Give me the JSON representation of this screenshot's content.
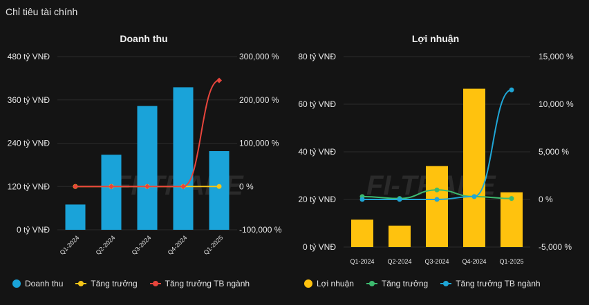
{
  "page": {
    "title": "Chỉ tiêu tài chính"
  },
  "chart_data": [
    {
      "type": "bar",
      "title": "Doanh thu",
      "categories": [
        "Q1-2024",
        "Q2-2024",
        "Q3-2024",
        "Q4-2024",
        "Q1-2025"
      ],
      "ylim": [
        0,
        480
      ],
      "y2lim": [
        -100000,
        300000
      ],
      "y_ticks": [
        "0 tỷ VNĐ",
        "120 tỷ VNĐ",
        "240 tỷ VNĐ",
        "360 tỷ VNĐ",
        "480 tỷ VNĐ"
      ],
      "y_tick_values": [
        0,
        120,
        240,
        360,
        480
      ],
      "y2_ticks": [
        "-100,000 %",
        "0 %",
        "100,000 %",
        "200,000 %",
        "300,000 %"
      ],
      "y2_tick_values": [
        -100000,
        0,
        100000,
        200000,
        300000
      ],
      "series": [
        {
          "name": "Doanh thu",
          "kind": "bar",
          "axis": "left",
          "color": "#1aa3d9",
          "values": [
            70,
            208,
            343,
            395,
            218
          ]
        },
        {
          "name": "Tăng trưởng",
          "kind": "line",
          "axis": "right",
          "color": "#f5c518",
          "values": [
            0,
            0,
            0,
            0,
            0
          ]
        },
        {
          "name": "Tăng trưởng TB ngành",
          "kind": "line",
          "axis": "right",
          "color": "#e8453c",
          "values": [
            0,
            0,
            0,
            0,
            245000
          ]
        }
      ]
    },
    {
      "type": "bar",
      "title": "Lợi nhuận",
      "categories": [
        "Q1-2024",
        "Q2-2024",
        "Q3-2024",
        "Q4-2024",
        "Q1-2025"
      ],
      "ylim": [
        0,
        80
      ],
      "y2lim": [
        -5000,
        15000
      ],
      "y_ticks": [
        "0 tỷ VNĐ",
        "20 tỷ VNĐ",
        "40 tỷ VNĐ",
        "60 tỷ VNĐ",
        "80 tỷ VNĐ"
      ],
      "y_tick_values": [
        0,
        20,
        40,
        60,
        80
      ],
      "y2_ticks": [
        "-5,000 %",
        "0 %",
        "5,000 %",
        "10,000 %",
        "15,000 %"
      ],
      "y2_tick_values": [
        -5000,
        0,
        5000,
        10000,
        15000
      ],
      "series": [
        {
          "name": "Lợi nhuận",
          "kind": "bar",
          "axis": "left",
          "color": "#ffc20e",
          "values": [
            11.5,
            9,
            34,
            66.5,
            23
          ]
        },
        {
          "name": "Tăng trưởng",
          "kind": "line",
          "axis": "right",
          "color": "#3dba6f",
          "values": [
            300,
            100,
            1000,
            300,
            100
          ]
        },
        {
          "name": "Tăng trưởng TB ngành",
          "kind": "line",
          "axis": "right",
          "color": "#1fa6d6",
          "values": [
            0,
            0,
            0,
            300,
            11500
          ]
        }
      ]
    }
  ],
  "legends": [
    [
      {
        "label": "Doanh thu",
        "marker": "dot",
        "color": "#1aa3d9"
      },
      {
        "label": "Tăng trưởng",
        "marker": "line",
        "color": "#f5c518"
      },
      {
        "label": "Tăng trưởng TB ngành",
        "marker": "line",
        "color": "#e8453c"
      }
    ],
    [
      {
        "label": "Lợi nhuận",
        "marker": "dot",
        "color": "#ffc20e"
      },
      {
        "label": "Tăng trưởng",
        "marker": "line",
        "color": "#3dba6f"
      },
      {
        "label": "Tăng trưởng TB ngành",
        "marker": "line",
        "color": "#1fa6d6"
      }
    ]
  ]
}
